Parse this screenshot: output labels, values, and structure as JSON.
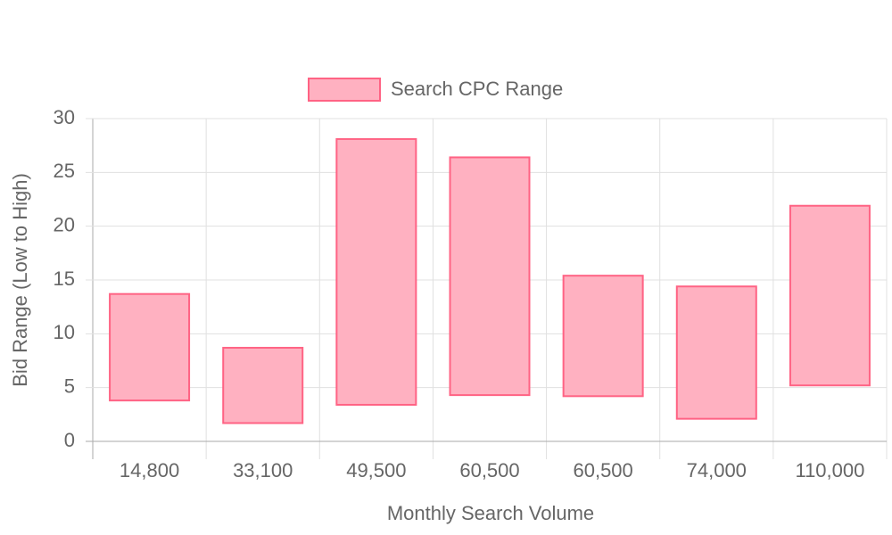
{
  "chart_data": {
    "type": "floating-bar",
    "x_label": "Monthly Search Volume",
    "y_label": "Bid Range (Low to High)",
    "categories": [
      "14,800",
      "33,100",
      "49,500",
      "60,500",
      "60,500",
      "74,000",
      "110,000"
    ],
    "series": [
      {
        "name": "Search CPC Range",
        "color": "#ff6384",
        "fill": "#ffb1c1",
        "low": [
          3.8,
          1.7,
          3.4,
          4.3,
          4.2,
          2.1,
          5.2
        ],
        "high": [
          13.7,
          8.7,
          28.1,
          26.4,
          15.4,
          14.4,
          21.9
        ]
      }
    ],
    "ylim": [
      0,
      30
    ],
    "yticks": [
      0,
      5,
      10,
      15,
      20,
      25,
      30
    ],
    "grid": true,
    "legend": "top"
  }
}
